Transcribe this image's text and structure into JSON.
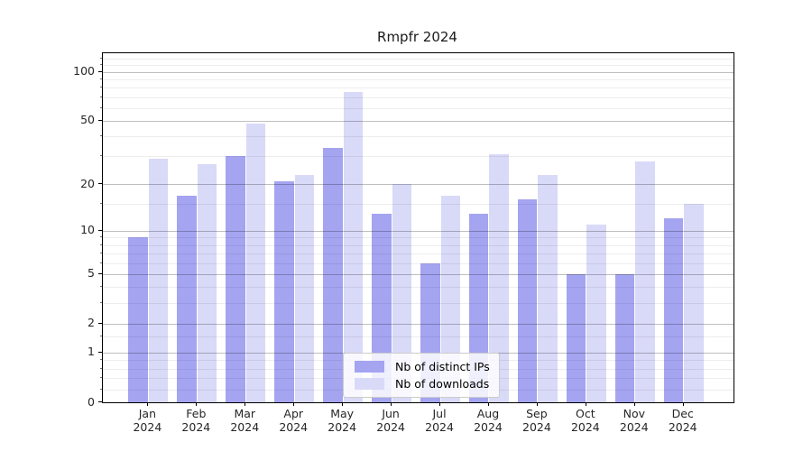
{
  "chart_data": {
    "type": "bar",
    "title": "Rmpfr 2024",
    "categories": [
      "Jan",
      "Feb",
      "Mar",
      "Apr",
      "May",
      "Jun",
      "Jul",
      "Aug",
      "Sep",
      "Oct",
      "Nov",
      "Dec"
    ],
    "year_label": "2024",
    "series": [
      {
        "name": "Nb of distinct IPs",
        "color": "#a4a4f1",
        "values": [
          9,
          17,
          30,
          21,
          34,
          13,
          6,
          13,
          16,
          5,
          5,
          12
        ]
      },
      {
        "name": "Nb of downloads",
        "color": "#d9d9f8",
        "values": [
          29,
          27,
          48,
          23,
          75,
          20,
          17,
          31,
          23,
          11,
          28,
          15
        ]
      }
    ],
    "xlabel": "",
    "ylabel": "",
    "yscale": "log1p",
    "ylim": [
      0,
      130
    ],
    "yticks": [
      0,
      1,
      2,
      5,
      10,
      20,
      50,
      100
    ],
    "yticks_minor": [
      0.2,
      0.4,
      0.6,
      0.8,
      1.5,
      3,
      4,
      6,
      7,
      8,
      9,
      15,
      30,
      40,
      60,
      70,
      80,
      90,
      110,
      120
    ],
    "grid": true,
    "legend_position": "lower center"
  }
}
